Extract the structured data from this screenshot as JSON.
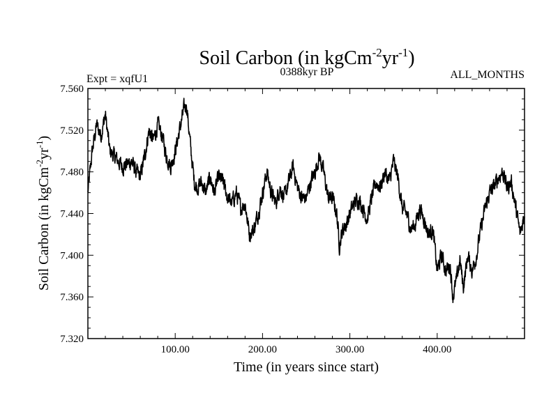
{
  "chart_data": {
    "type": "line",
    "title_main": "Soil Carbon (in kgCm",
    "title_sup1": "-2",
    "title_mid": "yr",
    "title_sup2": "-1",
    "title_end": ")",
    "left_label": "Expt = xqfU1",
    "center_label": "0388kyr BP",
    "right_label": "ALL_MONTHS",
    "xlabel": "Time (in years since start)",
    "ylabel_main": "Soil Carbon (in kgCm",
    "ylabel_sup1": "-2",
    "ylabel_mid": "yr",
    "ylabel_sup2": "-1",
    "ylabel_end": ")",
    "xlim": [
      0,
      500
    ],
    "ylim": [
      7.32,
      7.56
    ],
    "x_ticks": [
      100,
      200,
      300,
      400
    ],
    "x_tick_labels": [
      "100.00",
      "200.00",
      "300.00",
      "400.00"
    ],
    "y_ticks": [
      7.32,
      7.36,
      7.4,
      7.44,
      7.48,
      7.52,
      7.56
    ],
    "y_tick_labels": [
      "7.320",
      "7.360",
      "7.400",
      "7.440",
      "7.480",
      "7.520",
      "7.560"
    ],
    "line_color": "#000000",
    "series": [
      {
        "name": "Soil Carbon",
        "x": [
          0,
          5,
          10,
          15,
          20,
          25,
          30,
          40,
          50,
          55,
          60,
          65,
          70,
          75,
          80,
          85,
          90,
          95,
          100,
          105,
          110,
          113,
          118,
          122,
          125,
          130,
          135,
          140,
          145,
          150,
          155,
          160,
          165,
          170,
          175,
          180,
          185,
          190,
          195,
          200,
          205,
          210,
          215,
          220,
          225,
          230,
          235,
          240,
          245,
          250,
          255,
          260,
          265,
          270,
          275,
          280,
          285,
          288,
          292,
          296,
          300,
          305,
          310,
          315,
          320,
          325,
          330,
          335,
          340,
          345,
          350,
          355,
          360,
          365,
          370,
          375,
          380,
          385,
          390,
          395,
          400,
          405,
          410,
          415,
          418,
          422,
          426,
          430,
          435,
          440,
          445,
          450,
          455,
          460,
          465,
          470,
          475,
          480,
          485,
          490,
          495,
          500
        ],
        "values": [
          7.46,
          7.5,
          7.525,
          7.515,
          7.535,
          7.5,
          7.495,
          7.485,
          7.49,
          7.48,
          7.475,
          7.495,
          7.52,
          7.51,
          7.525,
          7.515,
          7.495,
          7.485,
          7.5,
          7.52,
          7.54,
          7.545,
          7.5,
          7.47,
          7.465,
          7.47,
          7.46,
          7.475,
          7.46,
          7.475,
          7.47,
          7.455,
          7.45,
          7.46,
          7.445,
          7.45,
          7.42,
          7.425,
          7.44,
          7.46,
          7.48,
          7.46,
          7.45,
          7.465,
          7.455,
          7.47,
          7.485,
          7.465,
          7.455,
          7.455,
          7.47,
          7.48,
          7.495,
          7.48,
          7.455,
          7.455,
          7.44,
          7.41,
          7.425,
          7.43,
          7.44,
          7.45,
          7.455,
          7.445,
          7.435,
          7.455,
          7.47,
          7.465,
          7.48,
          7.47,
          7.49,
          7.475,
          7.445,
          7.44,
          7.425,
          7.43,
          7.445,
          7.435,
          7.42,
          7.425,
          7.385,
          7.4,
          7.385,
          7.39,
          7.36,
          7.375,
          7.395,
          7.37,
          7.4,
          7.385,
          7.4,
          7.425,
          7.445,
          7.46,
          7.465,
          7.475,
          7.48,
          7.465,
          7.47,
          7.445,
          7.42,
          7.44
        ]
      }
    ]
  }
}
